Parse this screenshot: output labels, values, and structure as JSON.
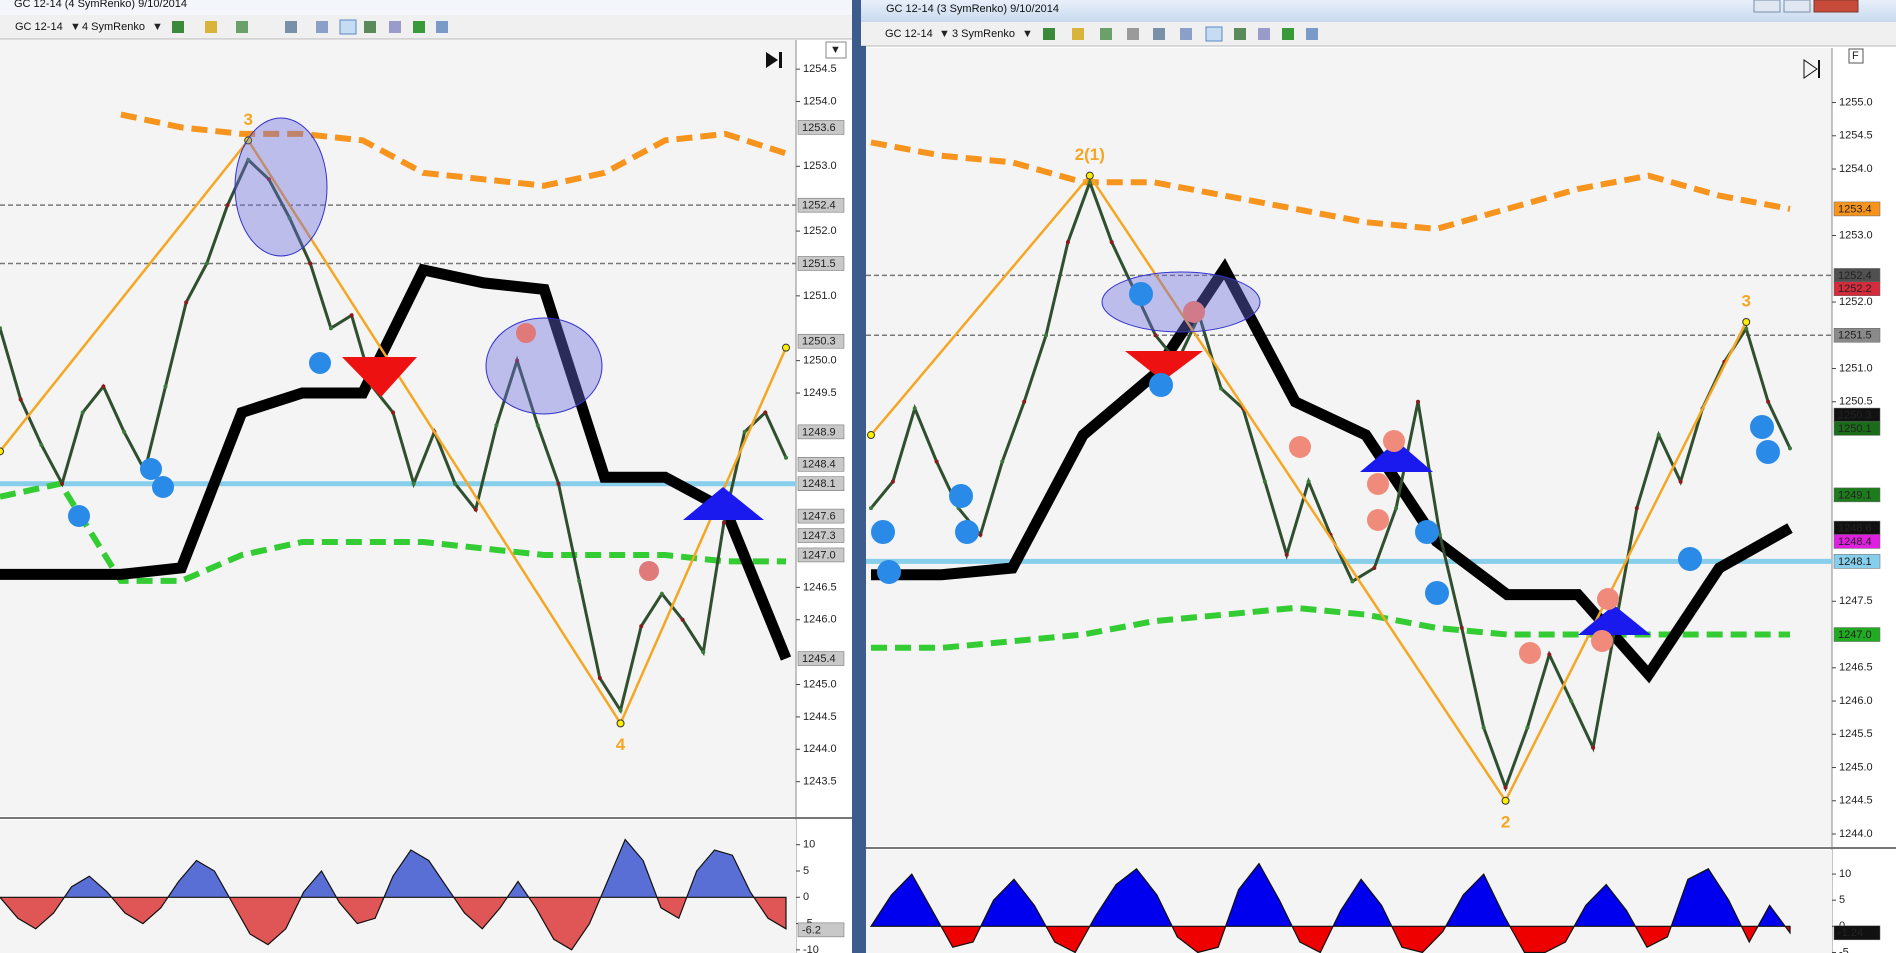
{
  "windows": [
    {
      "title": "GC 12-14 (4 SymRenko)  9/10/2014",
      "instrument": "GC 12-14",
      "bar_type": "4 SymRenko",
      "price_chart": {
        "type": "line",
        "ylim": [
          1242.97,
          1254.95
        ],
        "yticks": [
          1254.5,
          {
            "value": 1254,
            "label": "1254.0"
          },
          {
            "value": 1253,
            "label": "1253.0"
          },
          {
            "value": 1252,
            "label": "1252.0"
          },
          {
            "value": 1251,
            "label": "1251.0"
          },
          {
            "value": 1250,
            "label": "1250.0"
          },
          1249.5,
          1246.5,
          {
            "value": 1246,
            "label": "1246.0"
          },
          {
            "value": 1245,
            "label": "1245.0"
          },
          1244.5,
          {
            "value": 1244,
            "label": "1244.0"
          },
          1243.5
        ],
        "price_tags": [
          {
            "value": 1253.6,
            "color": "#c8c8c8",
            "text_color": "#111111"
          },
          {
            "value": 1252.4,
            "color": "#c8c8c8",
            "text_color": "#111111",
            "line": "dashed",
            "line_color": "#777777"
          },
          {
            "value": 1251.5,
            "color": "#c8c8c8",
            "text_color": "#111111",
            "line": "dashed",
            "line_color": "#777777"
          },
          {
            "value": 1250.3,
            "color": "#c8c8c8",
            "text_color": "#111111"
          },
          {
            "value": 1248.9,
            "color": "#c8c8c8",
            "text_color": "#111111"
          },
          {
            "value": 1248.4,
            "color": "#c8c8c8",
            "text_color": "#111111"
          },
          {
            "value": 1248.1,
            "color": "#c8c8c8",
            "text_color": "#111111",
            "line": "level",
            "line_color": "#87ceeb"
          },
          {
            "value": 1247.6,
            "color": "#c8c8c8",
            "text_color": "#111111"
          },
          {
            "value": 1247.3,
            "color": "#c8c8c8",
            "text_color": "#111111"
          },
          {
            "value": 1247,
            "label": "1247.0",
            "color": "#c8c8c8",
            "text_color": "#111111"
          },
          {
            "value": 1245.4,
            "color": "#c8c8c8",
            "text_color": "#111111"
          }
        ],
        "closes": [
          1250.5,
          1249.4,
          1248.7,
          1248.1,
          1249.2,
          1249.6,
          1248.9,
          1248.3,
          1249.6,
          1250.9,
          1251.5,
          1252.4,
          1253.1,
          1252.8,
          1252.2,
          1251.5,
          1250.5,
          1250.7,
          1249.6,
          1249.2,
          1248.1,
          1248.9,
          1248.1,
          1247.7,
          1249.0,
          1250.0,
          1249.0,
          1248.1,
          1246.6,
          1245.1,
          1244.6,
          1245.9,
          1246.4,
          1246.0,
          1245.5,
          1247.5,
          1248.9,
          1249.2,
          1248.5
        ],
        "close_color": "#2f4f2f",
        "upper_band": {
          "values": [
            null,
            null,
            1253.8,
            1253.6,
            1253.5,
            1253.5,
            1253.4,
            1252.9,
            1252.8,
            1252.7,
            1252.9,
            1253.4,
            1253.5,
            1253.2
          ],
          "color": "#f7941d",
          "dashed": true
        },
        "lower_band": {
          "values": [
            1247.9,
            1248.1,
            1246.6,
            1246.6,
            1247.0,
            1247.2,
            1247.2,
            1247.2,
            1247.1,
            1247.0,
            1247.0,
            1247.0,
            1246.9,
            1246.9
          ],
          "color": "#33cc33",
          "dashed": true
        },
        "stop_line": {
          "values": [
            1246.7,
            1246.7,
            1246.7,
            1246.8,
            1249.2,
            1249.5,
            1249.5,
            1251.4,
            1251.2,
            1251.1,
            1248.2,
            1248.2,
            1247.7,
            1245.4
          ],
          "color": "#000000"
        },
        "zigzag": {
          "x": [
            0,
            12,
            30,
            38
          ],
          "values": [
            1248.6,
            1253.4,
            1244.4,
            1250.2
          ],
          "labels": [
            null,
            "3",
            "4",
            null
          ],
          "color": "#f5a623"
        }
      },
      "oscillator": {
        "type": "area",
        "ylim": [
          -10.6,
          14.7
        ],
        "yticks": [
          10,
          5,
          0,
          -5,
          -10
        ],
        "values": [
          0,
          -4,
          -6,
          -3,
          2,
          4,
          1,
          -3,
          -5,
          -2,
          3,
          7,
          5,
          -1,
          -7,
          -9,
          -6,
          1,
          5,
          -1,
          -5,
          -4,
          4,
          9,
          7,
          2,
          -3,
          -6,
          -2,
          3,
          -2,
          -8,
          -10,
          -5,
          3,
          11,
          7,
          -2,
          -4,
          5,
          9,
          8,
          1,
          -4,
          -6
        ],
        "up_color": "#5a6fd6",
        "down_color": "#e05555",
        "tag": {
          "value": -6.2,
          "color": "#c8c8c8",
          "text_color": "#111111"
        }
      }
    },
    {
      "title": "GC 12-14 (3 SymRenko)  9/10/2014",
      "instrument": "GC 12-14",
      "bar_type": "3 SymRenko",
      "price_chart": {
        "type": "line",
        "ylim": [
          1243.82,
          1255.82
        ],
        "yticks": [
          {
            "value": 1255,
            "label": "1255.0"
          },
          1254.5,
          {
            "value": 1254,
            "label": "1254.0"
          },
          {
            "value": 1253,
            "label": "1253.0"
          },
          {
            "value": 1252,
            "label": "1252.0"
          },
          {
            "value": 1251,
            "label": "1251.0"
          },
          1250.5,
          1247.5,
          1246.5,
          {
            "value": 1246,
            "label": "1246.0"
          },
          1245.5,
          {
            "value": 1245,
            "label": "1245.0"
          },
          1244.5,
          {
            "value": 1244,
            "label": "1244.0"
          }
        ],
        "price_tags": [
          {
            "value": 1253.4,
            "color": "#f7941d",
            "text_color": "#111111"
          },
          {
            "value": 1252.4,
            "color": "#505050",
            "text_color": "#ffffff",
            "line": "dashed",
            "line_color": "#777777"
          },
          {
            "value": 1252.2,
            "color": "#d42c3c",
            "text_color": "#ffffff"
          },
          {
            "value": 1251.5,
            "color": "#8a8a8a",
            "text_color": "#111111",
            "line": "dashed",
            "line_color": "#777777"
          },
          {
            "value": 1250.3,
            "color": "#111111",
            "text_color": "#ffffff"
          },
          {
            "value": 1250.1,
            "color": "#1a6b1a",
            "text_color": "#ffffff"
          },
          {
            "value": 1249.1,
            "color": "#1e7b1e",
            "text_color": "#ffffff"
          },
          {
            "value": 1248.6,
            "color": "#111111",
            "text_color": "#ffffff"
          },
          {
            "value": 1248.4,
            "color": "#e020e0",
            "text_color": "#ffffff"
          },
          {
            "value": 1248.1,
            "color": "#87ceeb",
            "text_color": "#111111",
            "line": "level",
            "line_color": "#87ceeb"
          },
          {
            "value": 1247,
            "label": "1247.0",
            "color": "#22aa22",
            "text_color": "#111111"
          }
        ],
        "closes": [
          1248.9,
          1249.3,
          1250.4,
          1249.6,
          1248.9,
          1248.5,
          1249.6,
          1250.5,
          1251.5,
          1252.9,
          1253.8,
          1252.9,
          1252.2,
          1251.5,
          1251.1,
          1251.8,
          1250.7,
          1250.4,
          1249.3,
          1248.2,
          1249.3,
          1248.5,
          1247.8,
          1248.0,
          1248.9,
          1250.5,
          1248.5,
          1247.1,
          1245.6,
          1244.7,
          1245.6,
          1246.7,
          1246.0,
          1245.3,
          1247.1,
          1248.9,
          1250.0,
          1249.3,
          1250.4,
          1251.1,
          1251.6,
          1250.5,
          1249.8
        ],
        "close_color": "#2f4f2f",
        "upper_band": {
          "values": [
            1254.4,
            1254.2,
            1254.1,
            1253.8,
            1253.8,
            1253.6,
            1253.4,
            1253.2,
            1253.1,
            1253.4,
            1253.7,
            1253.9,
            1253.6,
            1253.4
          ],
          "color": "#f7941d",
          "dashed": true
        },
        "lower_band": {
          "values": [
            1246.8,
            1246.8,
            1246.9,
            1247.0,
            1247.2,
            1247.3,
            1247.4,
            1247.3,
            1247.1,
            1247.0,
            1247.0,
            1247.0,
            1247.0,
            1247.0
          ],
          "color": "#33cc33",
          "dashed": true
        },
        "stop_line": {
          "values": [
            1247.9,
            1247.9,
            1248.0,
            1250.0,
            1250.9,
            1252.5,
            1250.5,
            1250.0,
            1248.4,
            1247.6,
            1247.6,
            1246.4,
            1248.0,
            1248.6
          ],
          "color": "#000000"
        },
        "zigzag": {
          "x": [
            0,
            10,
            29,
            40
          ],
          "values": [
            1250.0,
            1253.9,
            1244.5,
            1251.7
          ],
          "labels": [
            null,
            "2(1)",
            "2",
            "3"
          ],
          "color": "#f5a623"
        }
      },
      "oscillator": {
        "type": "area",
        "ylim": [
          -5.1,
          14.6
        ],
        "yticks": [
          10,
          5,
          0,
          -5
        ],
        "values": [
          0,
          6,
          10,
          3,
          -4,
          -3,
          5,
          9,
          4,
          -3,
          -5,
          2,
          8,
          11,
          6,
          -2,
          -5,
          -4,
          7,
          12,
          5,
          -3,
          -5,
          3,
          9,
          4,
          -4,
          -5,
          -1,
          6,
          10,
          2,
          -5,
          -5,
          -3,
          4,
          8,
          3,
          -4,
          -2,
          9,
          11,
          5,
          -3,
          4,
          -1.24
        ],
        "up_color": "#0000ee",
        "down_color": "#ee0000",
        "tag": {
          "value": -1.24,
          "color": "#111111",
          "text_color": "#ffffff"
        }
      }
    }
  ]
}
